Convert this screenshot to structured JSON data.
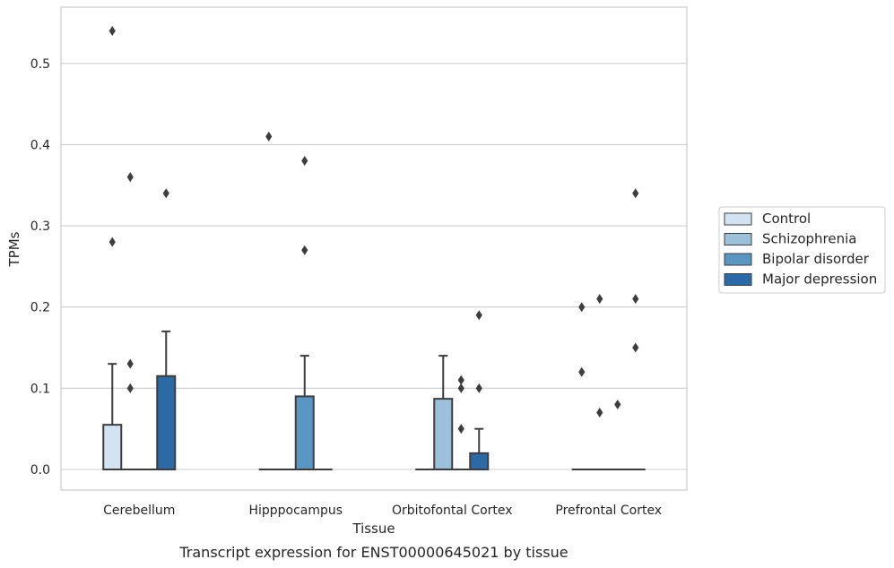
{
  "chart_data": {
    "type": "box",
    "title": "",
    "caption": "Transcript expression for ENST00000645021 by tissue",
    "xlabel": "Tissue",
    "ylabel": "TPMs",
    "ylim": [
      -0.026,
      0.566
    ],
    "yticks": [
      0.0,
      0.1,
      0.2,
      0.3,
      0.4,
      0.5
    ],
    "ytick_labels": [
      "0.0",
      "0.1",
      "0.2",
      "0.3",
      "0.4",
      "0.5"
    ],
    "grid": "horizontal",
    "legend_position": "right",
    "categories": [
      "Cerebellum",
      "Hipppocampus",
      "Orbitofontal Cortex",
      "Prefrontal Cortex"
    ],
    "series": [
      {
        "name": "Control",
        "color": "#d3e3f1",
        "boxes": [
          {
            "q1": 0.0,
            "median": 0.0,
            "q3": 0.055,
            "whisker_low": 0.0,
            "whisker_high": 0.13,
            "outliers": [
              0.54,
              0.28
            ]
          },
          {
            "q1": 0.0,
            "median": 0.0,
            "q3": 0.0,
            "whisker_low": 0.0,
            "whisker_high": 0.0,
            "outliers": [
              0.41
            ]
          },
          {
            "q1": 0.0,
            "median": 0.0,
            "q3": 0.0,
            "whisker_low": 0.0,
            "whisker_high": 0.0,
            "outliers": []
          },
          {
            "q1": 0.0,
            "median": 0.0,
            "q3": 0.0,
            "whisker_low": 0.0,
            "whisker_high": 0.0,
            "outliers": [
              0.2,
              0.12
            ]
          }
        ]
      },
      {
        "name": "Schizophrenia",
        "color": "#9ac1d9",
        "boxes": [
          {
            "q1": 0.0,
            "median": 0.0,
            "q3": 0.0,
            "whisker_low": 0.0,
            "whisker_high": 0.0,
            "outliers": [
              0.36,
              0.13,
              0.1
            ]
          },
          {
            "q1": 0.0,
            "median": 0.0,
            "q3": 0.0,
            "whisker_low": 0.0,
            "whisker_high": 0.0,
            "outliers": []
          },
          {
            "q1": 0.0,
            "median": 0.0,
            "q3": 0.087,
            "whisker_low": 0.0,
            "whisker_high": 0.14,
            "outliers": []
          },
          {
            "q1": 0.0,
            "median": 0.0,
            "q3": 0.0,
            "whisker_low": 0.0,
            "whisker_high": 0.0,
            "outliers": [
              0.21,
              0.07
            ]
          }
        ]
      },
      {
        "name": "Bipolar disorder",
        "color": "#5a96c2",
        "boxes": [
          {
            "q1": 0.0,
            "median": 0.0,
            "q3": 0.0,
            "whisker_low": 0.0,
            "whisker_high": 0.0,
            "outliers": []
          },
          {
            "q1": 0.0,
            "median": 0.0,
            "q3": 0.09,
            "whisker_low": 0.0,
            "whisker_high": 0.14,
            "outliers": [
              0.38,
              0.27
            ]
          },
          {
            "q1": 0.0,
            "median": 0.0,
            "q3": 0.0,
            "whisker_low": 0.0,
            "whisker_high": 0.0,
            "outliers": [
              0.11,
              0.1,
              0.05
            ]
          },
          {
            "q1": 0.0,
            "median": 0.0,
            "q3": 0.0,
            "whisker_low": 0.0,
            "whisker_high": 0.0,
            "outliers": [
              0.08
            ]
          }
        ]
      },
      {
        "name": "Major depression",
        "color": "#2b6aa6",
        "boxes": [
          {
            "q1": 0.0,
            "median": 0.0,
            "q3": 0.115,
            "whisker_low": 0.0,
            "whisker_high": 0.17,
            "outliers": [
              0.34
            ]
          },
          {
            "q1": 0.0,
            "median": 0.0,
            "q3": 0.0,
            "whisker_low": 0.0,
            "whisker_high": 0.0,
            "outliers": []
          },
          {
            "q1": 0.0,
            "median": 0.0,
            "q3": 0.02,
            "whisker_low": 0.0,
            "whisker_high": 0.05,
            "outliers": [
              0.19,
              0.1
            ]
          },
          {
            "q1": 0.0,
            "median": 0.0,
            "q3": 0.0,
            "whisker_low": 0.0,
            "whisker_high": 0.0,
            "outliers": [
              0.34,
              0.21,
              0.15
            ]
          }
        ]
      }
    ]
  }
}
